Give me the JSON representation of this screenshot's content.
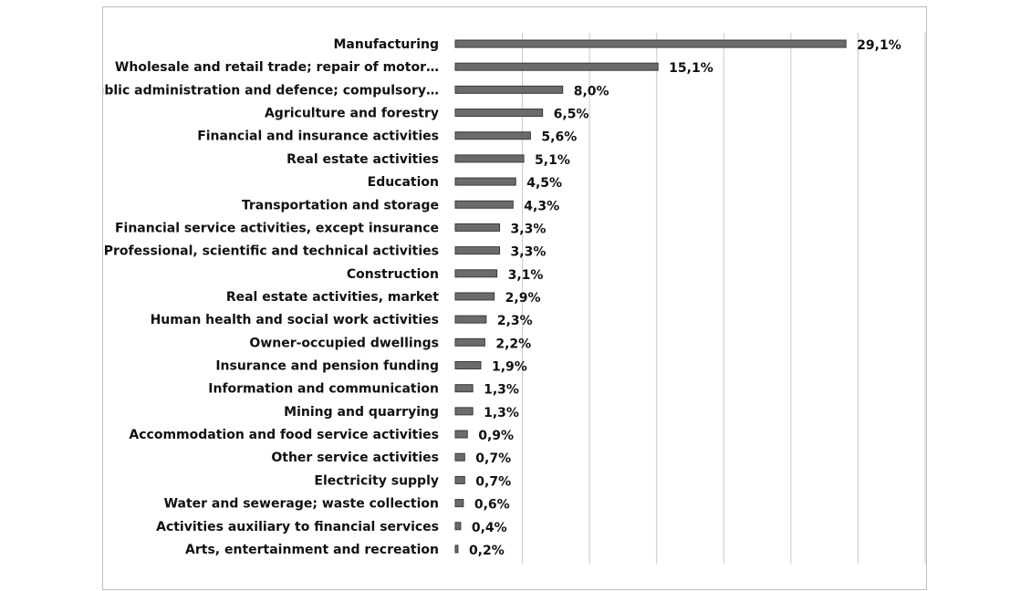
{
  "chart_data": {
    "type": "bar",
    "orientation": "horizontal",
    "categories": [
      "Manufacturing",
      "Wholesale and retail trade; repair of motor…",
      "Public administration and defence; compulsory…",
      "Agriculture and forestry",
      "Financial and insurance activities",
      "Real estate activities",
      "Education",
      "Transportation and storage",
      "Financial service activities, except insurance",
      "Professional, scientific and technical activities",
      "Construction",
      "Real estate activities, market",
      "Human health and social work activities",
      "Owner-occupied dwellings",
      "Insurance and pension funding",
      "Information and communication",
      "Mining and quarrying",
      "Accommodation and food service activities",
      "Other service activities",
      "Electricity supply",
      "Water and sewerage; waste collection",
      "Activities auxiliary to financial services",
      "Arts, entertainment and recreation"
    ],
    "values": [
      29.1,
      15.1,
      8.0,
      6.5,
      5.6,
      5.1,
      4.5,
      4.3,
      3.3,
      3.3,
      3.1,
      2.9,
      2.3,
      2.2,
      1.9,
      1.3,
      1.3,
      0.9,
      0.7,
      0.7,
      0.6,
      0.4,
      0.2
    ],
    "value_labels": [
      "29,1%",
      "15,1%",
      "8,0%",
      "6,5%",
      "5,6%",
      "5,1%",
      "4,5%",
      "4,3%",
      "3,3%",
      "3,3%",
      "3,1%",
      "2,9%",
      "2,3%",
      "2,2%",
      "1,9%",
      "1,3%",
      "1,3%",
      "0,9%",
      "0,7%",
      "0,7%",
      "0,6%",
      "0,4%",
      "0,2%"
    ],
    "xlim": [
      0,
      35
    ],
    "grid": true,
    "bar_color": "#6b6b6b",
    "title": "",
    "xlabel": "",
    "ylabel": ""
  }
}
